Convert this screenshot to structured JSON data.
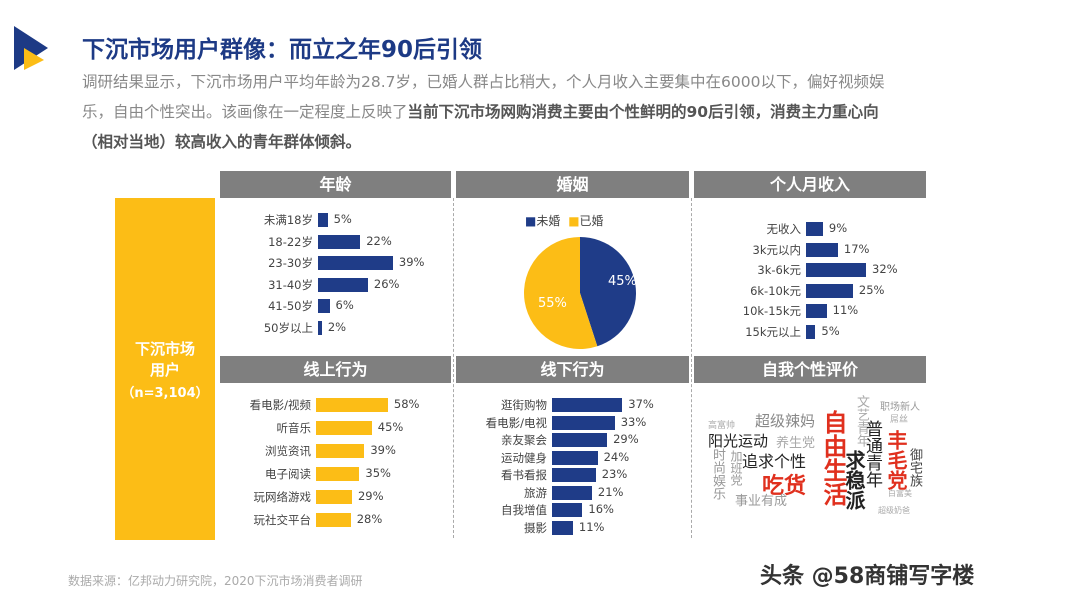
{
  "title": "下沉市场用户群像：而立之年90后引领",
  "desc": {
    "l1": "调研结果显示，下沉市场用户平均年龄为28.7岁，已婚人群占比稍大，个人月收入主要集中在6000以下，偏好视频娱",
    "l2a": "乐，自由个性突出。该画像在一定程度上反映了",
    "l2b": "当前下沉市场网购消费主要由个性鲜明的90后引领，消费主力重心向",
    "l3": "（相对当地）较高收入的青年群体倾斜。"
  },
  "side": {
    "l1": "下沉市场",
    "l2": "用户",
    "l3": "（n=3,104）"
  },
  "colors": {
    "navy": "#1f3c88",
    "yellow": "#fcbd16",
    "header": "#7f7f7f"
  },
  "panels": {
    "age": {
      "title": "年龄",
      "items": [
        {
          "label": "未满18岁",
          "value": 5
        },
        {
          "label": "18-22岁",
          "value": 22
        },
        {
          "label": "23-30岁",
          "value": 39
        },
        {
          "label": "31-40岁",
          "value": 26
        },
        {
          "label": "41-50岁",
          "value": 6
        },
        {
          "label": "50岁以上",
          "value": 2
        }
      ]
    },
    "marriage": {
      "title": "婚姻",
      "legend": [
        "未婚",
        "已婚"
      ],
      "unmarried": 45,
      "married": 55
    },
    "income": {
      "title": "个人月收入",
      "items": [
        {
          "label": "无收入",
          "value": 9
        },
        {
          "label": "3k元以内",
          "value": 17
        },
        {
          "label": "3k-6k元",
          "value": 32
        },
        {
          "label": "6k-10k元",
          "value": 25
        },
        {
          "label": "10k-15k元",
          "value": 11
        },
        {
          "label": "15k元以上",
          "value": 5
        }
      ]
    },
    "online": {
      "title": "线上行为",
      "items": [
        {
          "label": "看电影/视频",
          "value": 58
        },
        {
          "label": "听音乐",
          "value": 45
        },
        {
          "label": "浏览资讯",
          "value": 39
        },
        {
          "label": "电子阅读",
          "value": 35
        },
        {
          "label": "玩网络游戏",
          "value": 29
        },
        {
          "label": "玩社交平台",
          "value": 28
        }
      ]
    },
    "offline": {
      "title": "线下行为",
      "items": [
        {
          "label": "逛街购物",
          "value": 37
        },
        {
          "label": "看电影/电视",
          "value": 33
        },
        {
          "label": "亲友聚会",
          "value": 29
        },
        {
          "label": "运动健身",
          "value": 24
        },
        {
          "label": "看书看报",
          "value": 23
        },
        {
          "label": "旅游",
          "value": 21
        },
        {
          "label": "自我增值",
          "value": 16
        },
        {
          "label": "摄影",
          "value": 11
        }
      ]
    },
    "self": {
      "title": "自我个性评价",
      "words": [
        "高富帅",
        "超级辣妈",
        "阳光运动",
        "养生党",
        "追求个性",
        "吃货",
        "自由生活",
        "时尚娱乐",
        "加班党",
        "事业有成",
        "求稳派",
        "文艺青年",
        "普通青年",
        "职场新人",
        "屌丝",
        "丰毛党",
        "御宅族",
        "白富美",
        "超级奶爸"
      ]
    }
  },
  "source": "数据来源：亿邦动力研究院，2020下沉市场消费者调研",
  "watermark": "头条 @58商铺写字楼"
}
